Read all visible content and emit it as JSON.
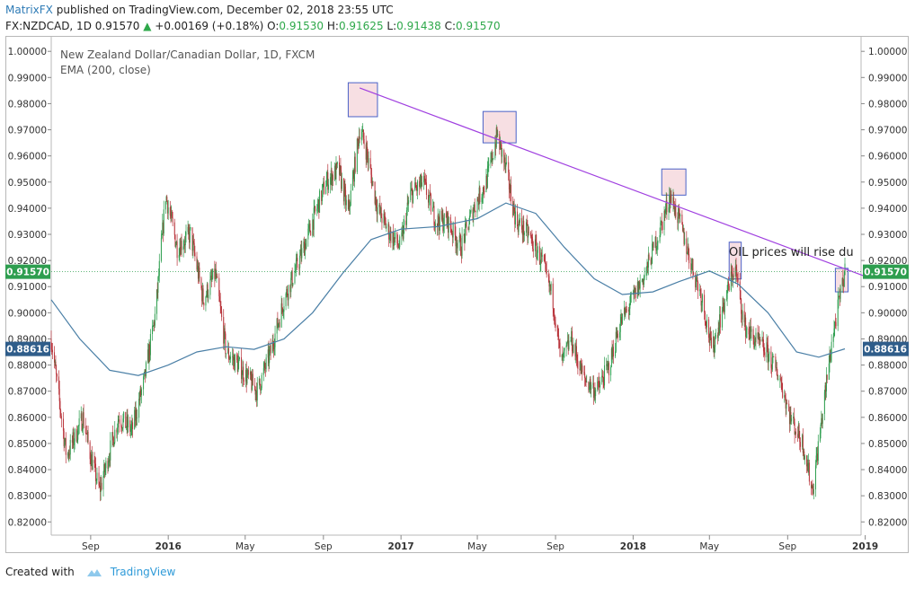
{
  "header": {
    "author": "MatrixFX",
    "published_text": "published on TradingView.com, December 02, 2018 23:55 UTC",
    "symbol": "FX:NZDCAD, 1D",
    "last": "0.91570",
    "change": "+0.00169 (+0.18%)",
    "o_label": "O:",
    "o": "0.91530",
    "h_label": "H:",
    "h": "0.91625",
    "l_label": "L:",
    "l": "0.91438",
    "c_label": "C:",
    "c": "0.91570"
  },
  "legend": {
    "title": "New Zealand Dollar/Canadian Dollar, 1D, FXCM",
    "indicator": "EMA (200, close)"
  },
  "annotation": "OIL prices will rise du",
  "footer": {
    "created_with": "Created with",
    "brand": "TradingView"
  },
  "colors": {
    "up": "#2e9e4f",
    "down": "#b8333a",
    "ema": "#4a7fa6",
    "trendline": "#a040e0",
    "price_badge": "#2e9e4f",
    "ema_badge": "#2f5d8a",
    "box_fill": "#f7dfe3",
    "box_stroke": "#4a62c8"
  },
  "chart_data": {
    "type": "candlestick",
    "title": "New Zealand Dollar/Canadian Dollar, 1D, FXCM",
    "yaxis_ticks": [
      "1.00000",
      "0.99000",
      "0.98000",
      "0.97000",
      "0.96000",
      "0.95000",
      "0.94000",
      "0.93000",
      "0.92000",
      "0.91000",
      "0.90000",
      "0.89000",
      "0.88000",
      "0.87000",
      "0.86000",
      "0.85000",
      "0.84000",
      "0.83000",
      "0.82000"
    ],
    "ylim": [
      0.817,
      1.0035
    ],
    "xaxis_ticks": [
      "Sep",
      "2016",
      "May",
      "Sep",
      "2017",
      "May",
      "Sep",
      "2018",
      "May",
      "Sep",
      "2019"
    ],
    "xaxis_tick_dates": [
      "2015-09-01",
      "2016-01-01",
      "2016-05-01",
      "2016-09-01",
      "2017-01-01",
      "2017-05-01",
      "2017-09-01",
      "2018-01-01",
      "2018-05-01",
      "2018-09-01",
      "2019-01-01"
    ],
    "date_range": [
      "2015-07-01",
      "2018-11-30"
    ],
    "price_path": [
      [
        "2015-07-01",
        0.89
      ],
      [
        "2015-07-25",
        0.845
      ],
      [
        "2015-08-20",
        0.86
      ],
      [
        "2015-09-01",
        0.845
      ],
      [
        "2015-09-15",
        0.832
      ],
      [
        "2015-10-15",
        0.86
      ],
      [
        "2015-11-05",
        0.855
      ],
      [
        "2015-11-25",
        0.875
      ],
      [
        "2015-12-12",
        0.9
      ],
      [
        "2015-12-28",
        0.945
      ],
      [
        "2016-01-15",
        0.925
      ],
      [
        "2016-02-05",
        0.93
      ],
      [
        "2016-02-25",
        0.905
      ],
      [
        "2016-03-15",
        0.915
      ],
      [
        "2016-04-01",
        0.885
      ],
      [
        "2016-04-20",
        0.88
      ],
      [
        "2016-05-05",
        0.875
      ],
      [
        "2016-05-20",
        0.87
      ],
      [
        "2016-06-10",
        0.885
      ],
      [
        "2016-07-01",
        0.905
      ],
      [
        "2016-07-25",
        0.92
      ],
      [
        "2016-08-15",
        0.935
      ],
      [
        "2016-09-05",
        0.95
      ],
      [
        "2016-09-25",
        0.955
      ],
      [
        "2016-10-10",
        0.938
      ],
      [
        "2016-10-28",
        0.97
      ],
      [
        "2016-11-05",
        0.965
      ],
      [
        "2016-11-25",
        0.94
      ],
      [
        "2016-12-15",
        0.93
      ],
      [
        "2016-12-31",
        0.925
      ],
      [
        "2017-01-15",
        0.945
      ],
      [
        "2017-02-05",
        0.95
      ],
      [
        "2017-02-25",
        0.935
      ],
      [
        "2017-03-15",
        0.935
      ],
      [
        "2017-04-05",
        0.925
      ],
      [
        "2017-04-25",
        0.94
      ],
      [
        "2017-05-15",
        0.95
      ],
      [
        "2017-06-01",
        0.968
      ],
      [
        "2017-06-15",
        0.955
      ],
      [
        "2017-07-01",
        0.935
      ],
      [
        "2017-07-20",
        0.93
      ],
      [
        "2017-08-10",
        0.92
      ],
      [
        "2017-08-28",
        0.905
      ],
      [
        "2017-09-10",
        0.88
      ],
      [
        "2017-09-25",
        0.89
      ],
      [
        "2017-10-15",
        0.875
      ],
      [
        "2017-11-05",
        0.87
      ],
      [
        "2017-11-25",
        0.88
      ],
      [
        "2017-12-10",
        0.895
      ],
      [
        "2017-12-31",
        0.905
      ],
      [
        "2018-01-20",
        0.915
      ],
      [
        "2018-02-10",
        0.93
      ],
      [
        "2018-02-28",
        0.945
      ],
      [
        "2018-03-15",
        0.935
      ],
      [
        "2018-04-01",
        0.92
      ],
      [
        "2018-04-20",
        0.905
      ],
      [
        "2018-05-05",
        0.885
      ],
      [
        "2018-05-20",
        0.9
      ],
      [
        "2018-06-10",
        0.918
      ],
      [
        "2018-06-25",
        0.895
      ],
      [
        "2018-07-10",
        0.89
      ],
      [
        "2018-07-30",
        0.885
      ],
      [
        "2018-08-20",
        0.875
      ],
      [
        "2018-09-05",
        0.86
      ],
      [
        "2018-09-25",
        0.85
      ],
      [
        "2018-10-10",
        0.832
      ],
      [
        "2018-10-25",
        0.86
      ],
      [
        "2018-11-10",
        0.89
      ],
      [
        "2018-11-30",
        0.9157
      ]
    ],
    "ema_200_path": [
      [
        "2015-07-01",
        0.905
      ],
      [
        "2015-08-15",
        0.89
      ],
      [
        "2015-10-01",
        0.878
      ],
      [
        "2015-11-15",
        0.876
      ],
      [
        "2016-01-01",
        0.88
      ],
      [
        "2016-02-15",
        0.885
      ],
      [
        "2016-04-01",
        0.887
      ],
      [
        "2016-05-15",
        0.886
      ],
      [
        "2016-07-01",
        0.89
      ],
      [
        "2016-08-15",
        0.9
      ],
      [
        "2016-10-01",
        0.915
      ],
      [
        "2016-11-15",
        0.928
      ],
      [
        "2017-01-01",
        0.932
      ],
      [
        "2017-03-01",
        0.933
      ],
      [
        "2017-05-01",
        0.936
      ],
      [
        "2017-06-15",
        0.942
      ],
      [
        "2017-08-01",
        0.938
      ],
      [
        "2017-09-15",
        0.925
      ],
      [
        "2017-11-01",
        0.913
      ],
      [
        "2017-12-15",
        0.907
      ],
      [
        "2018-02-01",
        0.908
      ],
      [
        "2018-03-15",
        0.912
      ],
      [
        "2018-05-01",
        0.916
      ],
      [
        "2018-06-15",
        0.911
      ],
      [
        "2018-08-01",
        0.9
      ],
      [
        "2018-09-15",
        0.885
      ],
      [
        "2018-10-20",
        0.883
      ],
      [
        "2018-11-30",
        0.8862
      ]
    ],
    "current_price": 0.9157,
    "current_price_label": "0.91570",
    "ema_value": 0.88616,
    "ema_label": "0.88616",
    "trendline": [
      [
        "2016-10-28",
        0.986
      ],
      [
        "2018-12-31",
        0.914
      ]
    ],
    "highlight_boxes": [
      {
        "start": "2016-10-10",
        "end": "2016-11-25",
        "top": 0.988,
        "bottom": 0.975
      },
      {
        "start": "2017-05-10",
        "end": "2017-07-01",
        "top": 0.977,
        "bottom": 0.965
      },
      {
        "start": "2018-02-15",
        "end": "2018-03-25",
        "top": 0.955,
        "bottom": 0.945
      },
      {
        "start": "2018-06-01",
        "end": "2018-06-20",
        "top": 0.927
      },
      {
        "start": "2018-11-15",
        "end": "2018-12-05",
        "top": 0.917,
        "bottom": 0.908
      }
    ]
  }
}
